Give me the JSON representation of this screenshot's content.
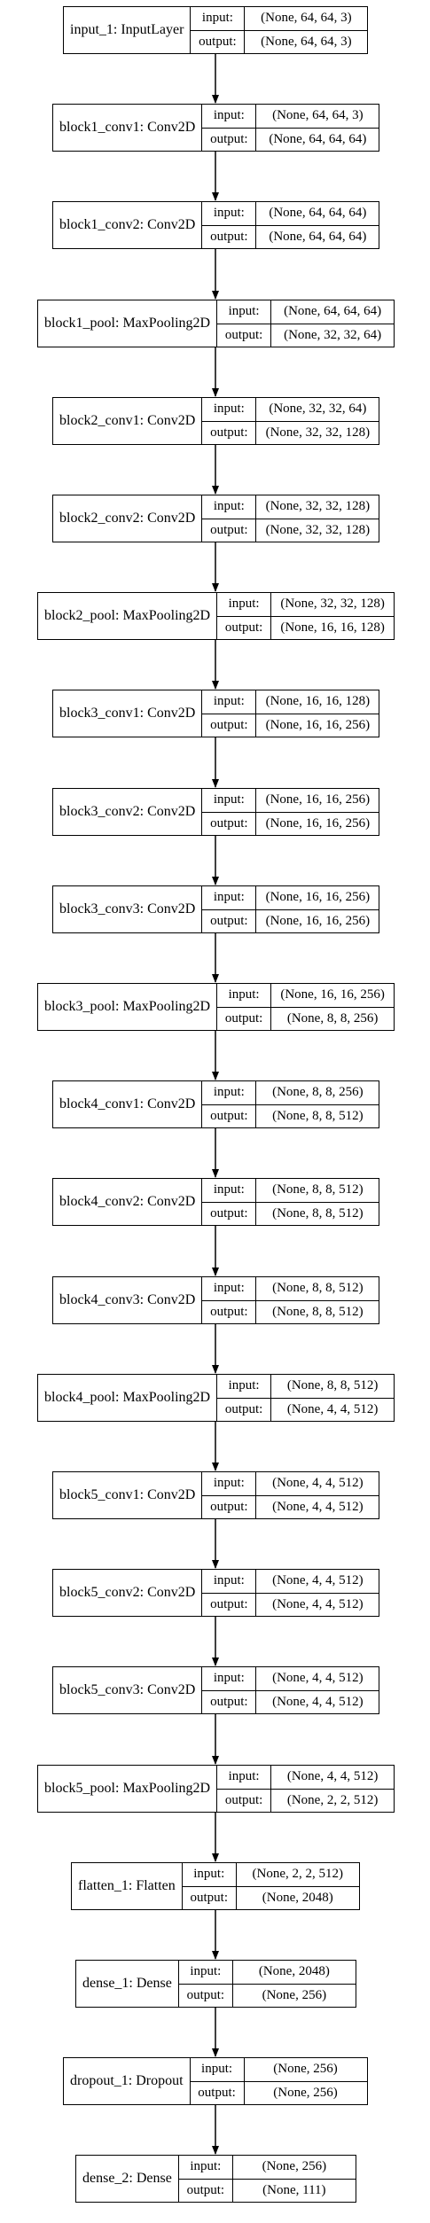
{
  "diagram": {
    "type": "keras-model-plot",
    "labels": {
      "input": "input:",
      "output": "output:"
    },
    "layers": [
      {
        "name": "input_1: InputLayer",
        "input": "(None, 64, 64, 3)",
        "output": "(None, 64, 64, 3)"
      },
      {
        "name": "block1_conv1: Conv2D",
        "input": "(None, 64, 64, 3)",
        "output": "(None, 64, 64, 64)"
      },
      {
        "name": "block1_conv2: Conv2D",
        "input": "(None, 64, 64, 64)",
        "output": "(None, 64, 64, 64)"
      },
      {
        "name": "block1_pool: MaxPooling2D",
        "input": "(None, 64, 64, 64)",
        "output": "(None, 32, 32, 64)"
      },
      {
        "name": "block2_conv1: Conv2D",
        "input": "(None, 32, 32, 64)",
        "output": "(None, 32, 32, 128)"
      },
      {
        "name": "block2_conv2: Conv2D",
        "input": "(None, 32, 32, 128)",
        "output": "(None, 32, 32, 128)"
      },
      {
        "name": "block2_pool: MaxPooling2D",
        "input": "(None, 32, 32, 128)",
        "output": "(None, 16, 16, 128)"
      },
      {
        "name": "block3_conv1: Conv2D",
        "input": "(None, 16, 16, 128)",
        "output": "(None, 16, 16, 256)"
      },
      {
        "name": "block3_conv2: Conv2D",
        "input": "(None, 16, 16, 256)",
        "output": "(None, 16, 16, 256)"
      },
      {
        "name": "block3_conv3: Conv2D",
        "input": "(None, 16, 16, 256)",
        "output": "(None, 16, 16, 256)"
      },
      {
        "name": "block3_pool: MaxPooling2D",
        "input": "(None, 16, 16, 256)",
        "output": "(None, 8, 8, 256)"
      },
      {
        "name": "block4_conv1: Conv2D",
        "input": "(None, 8, 8, 256)",
        "output": "(None, 8, 8, 512)"
      },
      {
        "name": "block4_conv2: Conv2D",
        "input": "(None, 8, 8, 512)",
        "output": "(None, 8, 8, 512)"
      },
      {
        "name": "block4_conv3: Conv2D",
        "input": "(None, 8, 8, 512)",
        "output": "(None, 8, 8, 512)"
      },
      {
        "name": "block4_pool: MaxPooling2D",
        "input": "(None, 8, 8, 512)",
        "output": "(None, 4, 4, 512)"
      },
      {
        "name": "block5_conv1: Conv2D",
        "input": "(None, 4, 4, 512)",
        "output": "(None, 4, 4, 512)"
      },
      {
        "name": "block5_conv2: Conv2D",
        "input": "(None, 4, 4, 512)",
        "output": "(None, 4, 4, 512)"
      },
      {
        "name": "block5_conv3: Conv2D",
        "input": "(None, 4, 4, 512)",
        "output": "(None, 4, 4, 512)"
      },
      {
        "name": "block5_pool: MaxPooling2D",
        "input": "(None, 4, 4, 512)",
        "output": "(None, 2, 2, 512)"
      },
      {
        "name": "flatten_1: Flatten",
        "input": "(None, 2, 2, 512)",
        "output": "(None, 2048)"
      },
      {
        "name": "dense_1: Dense",
        "input": "(None, 2048)",
        "output": "(None, 256)"
      },
      {
        "name": "dropout_1: Dropout",
        "input": "(None, 256)",
        "output": "(None, 256)"
      },
      {
        "name": "dense_2: Dense",
        "input": "(None, 256)",
        "output": "(None, 111)"
      }
    ]
  }
}
